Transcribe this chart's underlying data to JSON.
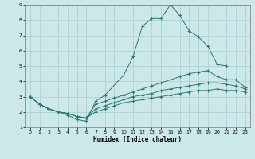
{
  "xlabel": "Humidex (Indice chaleur)",
  "bg_color": "#cce8e8",
  "grid_color": "#aacece",
  "line_color": "#2d7a6e",
  "xlim": [
    -0.5,
    23.5
  ],
  "ylim": [
    1,
    9
  ],
  "xticks": [
    0,
    1,
    2,
    3,
    4,
    5,
    6,
    7,
    8,
    9,
    10,
    11,
    12,
    13,
    14,
    15,
    16,
    17,
    18,
    19,
    20,
    21,
    22,
    23
  ],
  "yticks": [
    1,
    2,
    3,
    4,
    5,
    6,
    7,
    8,
    9
  ],
  "series": [
    {
      "x": [
        0,
        1,
        2,
        3,
        4,
        5,
        6,
        7,
        8,
        10,
        11,
        12,
        13,
        14,
        15,
        16,
        17,
        18,
        19,
        20,
        21
      ],
      "y": [
        3.0,
        2.5,
        2.2,
        2.0,
        1.8,
        1.5,
        1.4,
        2.7,
        3.1,
        4.4,
        5.6,
        7.6,
        8.1,
        8.1,
        9.0,
        8.3,
        7.3,
        6.9,
        6.3,
        5.1,
        5.0
      ]
    },
    {
      "x": [
        0,
        1,
        2,
        3,
        4,
        5,
        6,
        7,
        8,
        9,
        10,
        11,
        12,
        13,
        14,
        15,
        16,
        17,
        18,
        19,
        20,
        21,
        22,
        23
      ],
      "y": [
        3.0,
        2.5,
        2.2,
        2.0,
        1.9,
        1.7,
        1.6,
        2.5,
        2.7,
        2.9,
        3.1,
        3.3,
        3.5,
        3.7,
        3.9,
        4.1,
        4.3,
        4.5,
        4.6,
        4.7,
        4.3,
        4.1,
        4.1,
        3.6
      ]
    },
    {
      "x": [
        0,
        1,
        2,
        3,
        4,
        5,
        6,
        7,
        8,
        9,
        10,
        11,
        12,
        13,
        14,
        15,
        16,
        17,
        18,
        19,
        20,
        21,
        22,
        23
      ],
      "y": [
        3.0,
        2.5,
        2.2,
        2.0,
        1.9,
        1.7,
        1.6,
        2.2,
        2.4,
        2.6,
        2.8,
        3.0,
        3.1,
        3.2,
        3.4,
        3.5,
        3.6,
        3.7,
        3.8,
        3.9,
        3.9,
        3.8,
        3.7,
        3.5
      ]
    },
    {
      "x": [
        0,
        1,
        2,
        3,
        4,
        5,
        6,
        7,
        8,
        9,
        10,
        11,
        12,
        13,
        14,
        15,
        16,
        17,
        18,
        19,
        20,
        21,
        22,
        23
      ],
      "y": [
        3.0,
        2.5,
        2.2,
        2.0,
        1.9,
        1.7,
        1.6,
        2.0,
        2.2,
        2.4,
        2.6,
        2.7,
        2.8,
        2.9,
        3.0,
        3.1,
        3.2,
        3.3,
        3.4,
        3.4,
        3.5,
        3.4,
        3.4,
        3.3
      ]
    }
  ]
}
